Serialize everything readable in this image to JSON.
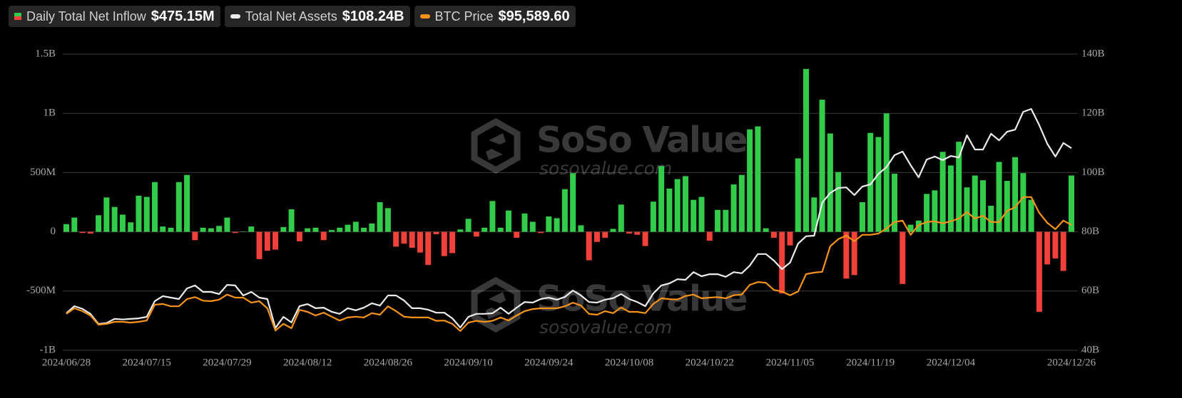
{
  "chart_data": {
    "type": "combo",
    "watermark": {
      "text": "SoSo Value",
      "url": "sosovalue.com"
    },
    "categories": [
      "2024/06/28",
      null,
      null,
      null,
      null,
      null,
      null,
      null,
      null,
      null,
      "2024/07/15",
      null,
      null,
      null,
      null,
      null,
      null,
      null,
      null,
      null,
      "2024/07/29",
      null,
      null,
      null,
      null,
      null,
      null,
      null,
      null,
      null,
      "2024/08/12",
      null,
      null,
      null,
      null,
      null,
      null,
      null,
      null,
      null,
      "2024/08/26",
      null,
      null,
      null,
      null,
      null,
      null,
      null,
      null,
      null,
      "2024/09/10",
      null,
      null,
      null,
      null,
      null,
      null,
      null,
      null,
      null,
      "2024/09/24",
      null,
      null,
      null,
      null,
      null,
      null,
      null,
      null,
      null,
      "2024/10/08",
      null,
      null,
      null,
      null,
      null,
      null,
      null,
      null,
      null,
      "2024/10/22",
      null,
      null,
      null,
      null,
      null,
      null,
      null,
      null,
      null,
      "2024/11/05",
      null,
      null,
      null,
      null,
      null,
      null,
      null,
      null,
      null,
      "2024/11/19",
      null,
      null,
      null,
      null,
      null,
      null,
      null,
      null,
      null,
      "2024/12/04",
      null,
      null,
      null,
      null,
      null,
      null,
      null,
      null,
      null,
      null,
      null,
      null,
      null,
      null,
      "2024/12/26"
    ],
    "ylim": [
      -1000,
      1500
    ],
    "yticks": [
      {
        "value": -1000,
        "label": "-1B"
      },
      {
        "value": -500,
        "label": "-500M"
      },
      0,
      {
        "value": 500,
        "label": "500M"
      },
      {
        "value": 1000,
        "label": "1B"
      },
      {
        "value": 1500,
        "label": "1.5B"
      }
    ],
    "y2lim": [
      40,
      140
    ],
    "y2ticks": [
      {
        "value": 40,
        "label": "40B"
      },
      {
        "value": 60,
        "label": "60B"
      },
      {
        "value": 80,
        "label": "80B"
      },
      {
        "value": 100,
        "label": "100B"
      },
      {
        "value": 120,
        "label": "120B"
      },
      {
        "value": 140,
        "label": "140B"
      }
    ],
    "y3lim": [
      46440,
      162540
    ],
    "grid": true,
    "series": [
      {
        "name": "Daily Total Net Inflow",
        "type": "bar",
        "color": "#33cc4a",
        "negative_color": "#f2403a",
        "latest_label": "$475.15M",
        "values": [
          65,
          120,
          -10,
          -15,
          140,
          290,
          210,
          145,
          80,
          305,
          295,
          420,
          45,
          35,
          420,
          480,
          -70,
          35,
          30,
          50,
          120,
          -10,
          3,
          45,
          -230,
          -160,
          -150,
          40,
          190,
          -80,
          30,
          35,
          -70,
          15,
          35,
          60,
          85,
          35,
          70,
          250,
          200,
          -125,
          -100,
          -135,
          -175,
          -280,
          -20,
          -205,
          -180,
          20,
          110,
          -40,
          35,
          260,
          35,
          180,
          -50,
          155,
          85,
          -10,
          130,
          115,
          360,
          495,
          55,
          -240,
          -85,
          -50,
          25,
          230,
          -15,
          -25,
          -120,
          255,
          555,
          365,
          445,
          470,
          270,
          295,
          -75,
          185,
          185,
          400,
          480,
          865,
          890,
          30,
          -50,
          -520,
          -115,
          620,
          1375,
          290,
          1115,
          830,
          505,
          -395,
          -365,
          250,
          835,
          800,
          1000,
          490,
          -440,
          60,
          95,
          320,
          350,
          675,
          560,
          760,
          375,
          475,
          435,
          220,
          590,
          430,
          630,
          495,
          270,
          -675,
          -275,
          -225,
          -330,
          475.15
        ]
      },
      {
        "name": "Total Net Assets",
        "type": "line",
        "axis": "y2",
        "color": "#ececec",
        "latest_label": "$108.24B",
        "values": [
          52.5,
          54.9,
          54,
          52.3,
          48.9,
          49.2,
          50.6,
          50.4,
          50.6,
          50.8,
          51.3,
          56.6,
          58.3,
          57.8,
          57.3,
          60.9,
          61.9,
          59.7,
          59.7,
          59,
          62.1,
          61.9,
          58.5,
          59.7,
          57.8,
          57.3,
          47.5,
          51.3,
          49.4,
          54.9,
          55.6,
          54.2,
          54.4,
          53,
          52.3,
          54.2,
          53.5,
          54.4,
          55.9,
          55.1,
          58.5,
          58.5,
          56.8,
          54.2,
          54.2,
          53.7,
          52.7,
          52.7,
          50.8,
          47.7,
          51.3,
          52.3,
          52.3,
          52.5,
          54.4,
          52.3,
          54.4,
          56.3,
          56.1,
          57.3,
          57.8,
          57.1,
          58,
          60.2,
          58.5,
          56.3,
          56.1,
          57.1,
          57.6,
          59,
          57.3,
          56.3,
          54.9,
          59.2,
          61.9,
          62.6,
          64,
          63.8,
          66.4,
          65,
          65.7,
          65.7,
          64.8,
          66.4,
          66,
          68.6,
          72.5,
          72.5,
          70.3,
          67.4,
          69.6,
          76,
          78.5,
          78.7,
          89.8,
          93.1,
          94.8,
          95,
          92.4,
          95.3,
          96,
          99.6,
          101.8,
          105.9,
          107.1,
          102.5,
          98.4,
          104.4,
          105.4,
          104.2,
          105.6,
          105.1,
          112.6,
          107.8,
          107.8,
          113.1,
          110.9,
          113.8,
          114.5,
          120.5,
          121.5,
          116,
          109.7,
          105.4,
          110,
          108.24
        ]
      },
      {
        "name": "BTC Price",
        "type": "line",
        "axis": "y3",
        "color": "#f7931a",
        "latest_label": "$95,589.60",
        "values": [
          60700,
          62900,
          61800,
          60100,
          56500,
          56800,
          57600,
          57600,
          57300,
          57600,
          58100,
          64300,
          64600,
          63700,
          63700,
          66500,
          67300,
          65900,
          65700,
          66300,
          68300,
          67100,
          67100,
          65100,
          65700,
          62900,
          54200,
          56800,
          55100,
          62300,
          61500,
          60100,
          61200,
          59600,
          58100,
          59300,
          59600,
          59300,
          61000,
          60400,
          63700,
          61800,
          59600,
          59300,
          59300,
          59300,
          58000,
          58100,
          56800,
          54000,
          57300,
          58000,
          57600,
          58000,
          59300,
          58100,
          60100,
          61800,
          62600,
          62900,
          62900,
          62900,
          63700,
          65100,
          64000,
          60700,
          60400,
          61800,
          61000,
          63200,
          61500,
          61500,
          61000,
          64600,
          66800,
          66500,
          66300,
          67700,
          68300,
          66800,
          67100,
          67300,
          66800,
          68000,
          68300,
          72100,
          73200,
          72900,
          70100,
          69500,
          68000,
          69500,
          76300,
          76900,
          77200,
          87200,
          90000,
          91400,
          89200,
          91700,
          91700,
          92200,
          94200,
          96700,
          97300,
          91700,
          95500,
          96700,
          97000,
          96200,
          97000,
          98100,
          100600,
          98100,
          99200,
          96700,
          96700,
          101100,
          102500,
          106500,
          106500,
          100300,
          96400,
          93900,
          97300,
          95589.6
        ]
      }
    ]
  }
}
